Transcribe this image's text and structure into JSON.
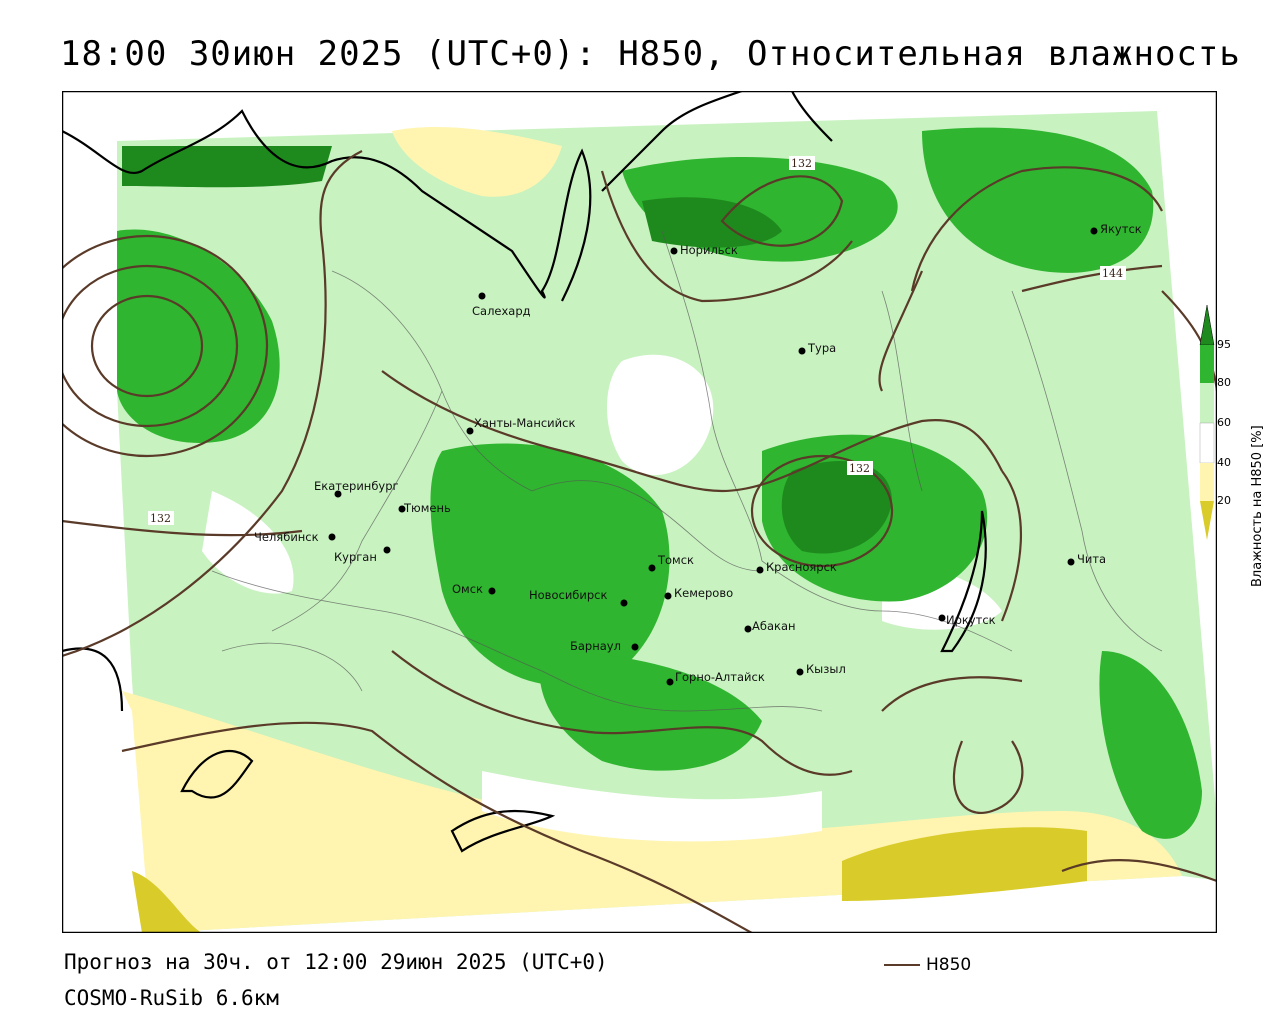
{
  "title": "18:00 30июн 2025 (UTC+0): H850, Относительная влажность",
  "footer": {
    "forecast": "Прогноз на 30ч. от 12:00 29июн 2025 (UTC+0)",
    "model": "COSMO-RuSib 6.6км"
  },
  "legend": {
    "line_label": "H850",
    "line_color": "#5a3a28"
  },
  "colorbar": {
    "title": "Влажность на H850 [%]",
    "ticks": [
      "95",
      "80",
      "60",
      "40",
      "20"
    ],
    "colors": {
      "gt95": "#1e8a1e",
      "80_95": "#2fb52f",
      "60_80": "#c8f2c0",
      "40_60": "#ffffff",
      "20_40": "#fff5b0",
      "lt20": "#d9cc2a"
    }
  },
  "isolines": [
    "132",
    "132",
    "132",
    "144"
  ],
  "cities": [
    {
      "name": "Салехард"
    },
    {
      "name": "Норильск"
    },
    {
      "name": "Якутск"
    },
    {
      "name": "Тура"
    },
    {
      "name": "Ханты-Мансийск"
    },
    {
      "name": "Екатеринбург"
    },
    {
      "name": "Тюмень"
    },
    {
      "name": "Челябинск"
    },
    {
      "name": "Курган"
    },
    {
      "name": "Омск"
    },
    {
      "name": "Новосибирск"
    },
    {
      "name": "Томск"
    },
    {
      "name": "Кемерово"
    },
    {
      "name": "Красноярск"
    },
    {
      "name": "Абакан"
    },
    {
      "name": "Барнаул"
    },
    {
      "name": "Горно-Алтайск"
    },
    {
      "name": "Кызыл"
    },
    {
      "name": "Иркутск"
    },
    {
      "name": "Чита"
    }
  ]
}
